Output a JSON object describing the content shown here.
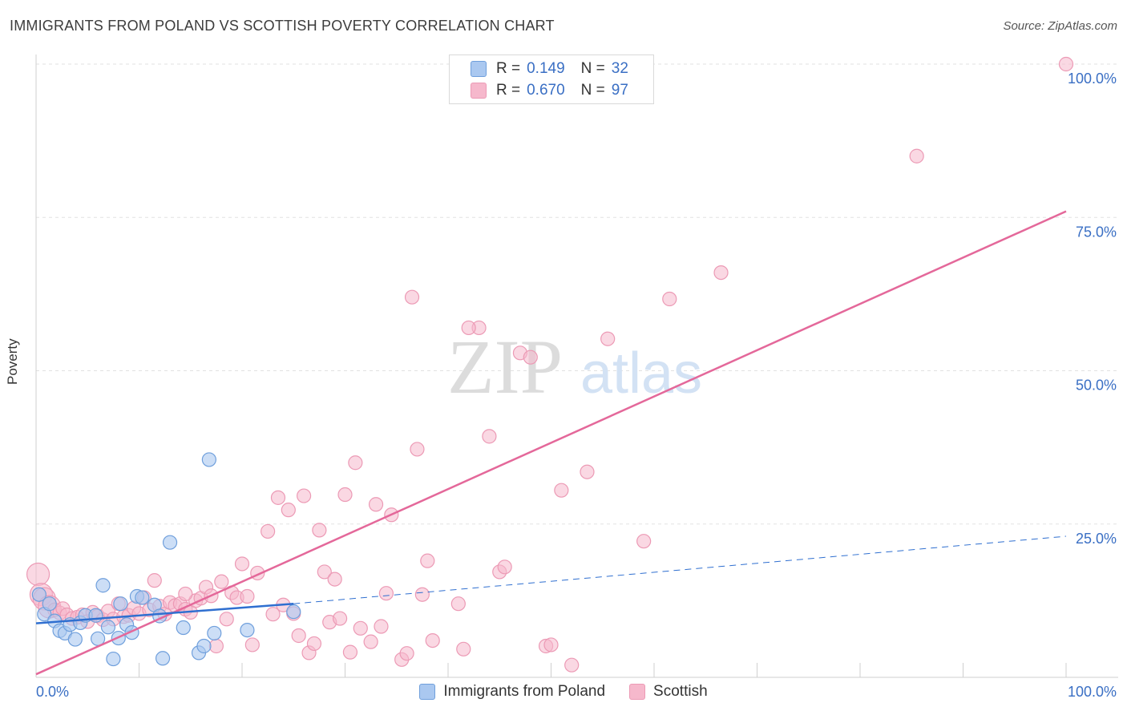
{
  "title": "IMMIGRANTS FROM POLAND VS SCOTTISH POVERTY CORRELATION CHART",
  "source": "Source: ZipAtlas.com",
  "watermark": {
    "zip": "ZIP",
    "atlas": "atlas"
  },
  "legend_stats": [
    {
      "r_label": "R =",
      "r_value": "0.149",
      "n_label": "N =",
      "n_value": "32"
    },
    {
      "r_label": "R =",
      "r_value": "0.670",
      "n_label": "N =",
      "n_value": "97"
    }
  ],
  "chart_data": {
    "type": "scatter",
    "title": "IMMIGRANTS FROM POLAND VS SCOTTISH POVERTY CORRELATION CHART",
    "xlabel": "",
    "ylabel": "Poverty",
    "xlim": [
      0,
      100
    ],
    "ylim": [
      0,
      100
    ],
    "x_tick_labels": [
      "0.0%",
      "100.0%"
    ],
    "y_tick_labels": [
      "25.0%",
      "50.0%",
      "75.0%",
      "100.0%"
    ],
    "y_ticks": [
      25,
      50,
      75,
      100
    ],
    "grid": true,
    "legend_position": "bottom",
    "colors": {
      "poland_fill": "#aac8f0",
      "poland_stroke": "#6f9fdc",
      "poland_line": "#2f6fd0",
      "scottish_fill": "#f6b8cc",
      "scottish_stroke": "#ec9ab5",
      "scottish_line": "#e4689a",
      "tick_label": "#3a6fc4"
    },
    "series": [
      {
        "name": "Immigrants from Poland",
        "R": 0.149,
        "N": 32,
        "trend": {
          "x": [
            0,
            25
          ],
          "y": [
            8.8,
            12.0
          ],
          "extended_x": [
            25,
            100
          ],
          "extended_y": [
            12.0,
            23.0
          ]
        },
        "points": [
          {
            "x": 0.3,
            "y": 13.5
          },
          {
            "x": 0.8,
            "y": 10.3
          },
          {
            "x": 1.3,
            "y": 12.0
          },
          {
            "x": 1.8,
            "y": 9.2
          },
          {
            "x": 2.3,
            "y": 7.6
          },
          {
            "x": 2.8,
            "y": 7.2
          },
          {
            "x": 3.3,
            "y": 8.6
          },
          {
            "x": 3.8,
            "y": 6.2
          },
          {
            "x": 4.3,
            "y": 8.9
          },
          {
            "x": 4.8,
            "y": 10.1
          },
          {
            "x": 5.8,
            "y": 10.1
          },
          {
            "x": 6.0,
            "y": 6.3
          },
          {
            "x": 6.5,
            "y": 15.0
          },
          {
            "x": 7.0,
            "y": 8.2
          },
          {
            "x": 7.5,
            "y": 3.0
          },
          {
            "x": 8.0,
            "y": 6.4
          },
          {
            "x": 8.2,
            "y": 12.0
          },
          {
            "x": 8.8,
            "y": 8.6
          },
          {
            "x": 9.3,
            "y": 7.3
          },
          {
            "x": 9.8,
            "y": 13.2
          },
          {
            "x": 10.3,
            "y": 13.0
          },
          {
            "x": 11.5,
            "y": 11.8
          },
          {
            "x": 12.0,
            "y": 10.0
          },
          {
            "x": 12.3,
            "y": 3.1
          },
          {
            "x": 13.0,
            "y": 22.0
          },
          {
            "x": 14.3,
            "y": 8.1
          },
          {
            "x": 15.8,
            "y": 4.0
          },
          {
            "x": 16.3,
            "y": 5.1
          },
          {
            "x": 16.8,
            "y": 35.5
          },
          {
            "x": 17.3,
            "y": 7.2
          },
          {
            "x": 20.5,
            "y": 7.7
          },
          {
            "x": 25.0,
            "y": 10.7
          }
        ]
      },
      {
        "name": "Scottish",
        "R": 0.67,
        "N": 97,
        "trend": {
          "x": [
            0,
            100
          ],
          "y": [
            0.5,
            76.0
          ]
        },
        "points": [
          {
            "x": 0.2,
            "y": 16.8
          },
          {
            "x": 0.5,
            "y": 13.5
          },
          {
            "x": 0.8,
            "y": 12.8
          },
          {
            "x": 1.3,
            "y": 11.5
          },
          {
            "x": 1.8,
            "y": 11.0
          },
          {
            "x": 2.3,
            "y": 10.5
          },
          {
            "x": 2.6,
            "y": 11.2
          },
          {
            "x": 3.0,
            "y": 10.2
          },
          {
            "x": 3.5,
            "y": 9.6
          },
          {
            "x": 4.0,
            "y": 9.8
          },
          {
            "x": 4.5,
            "y": 10.2
          },
          {
            "x": 5.0,
            "y": 9.1
          },
          {
            "x": 5.5,
            "y": 10.6
          },
          {
            "x": 6.0,
            "y": 10.0
          },
          {
            "x": 6.5,
            "y": 9.4
          },
          {
            "x": 7.0,
            "y": 10.8
          },
          {
            "x": 7.5,
            "y": 9.5
          },
          {
            "x": 8.0,
            "y": 12.0
          },
          {
            "x": 8.5,
            "y": 9.9
          },
          {
            "x": 9.0,
            "y": 10.1
          },
          {
            "x": 9.5,
            "y": 11.3
          },
          {
            "x": 10.0,
            "y": 10.4
          },
          {
            "x": 10.5,
            "y": 13.0
          },
          {
            "x": 11.0,
            "y": 11.0
          },
          {
            "x": 11.5,
            "y": 15.8
          },
          {
            "x": 12.0,
            "y": 11.6
          },
          {
            "x": 12.5,
            "y": 10.3
          },
          {
            "x": 13.0,
            "y": 12.2
          },
          {
            "x": 13.5,
            "y": 11.7
          },
          {
            "x": 14.0,
            "y": 12.0
          },
          {
            "x": 14.5,
            "y": 11.1
          },
          {
            "x": 15.0,
            "y": 10.6
          },
          {
            "x": 15.5,
            "y": 12.5
          },
          {
            "x": 16.0,
            "y": 12.9
          },
          {
            "x": 16.5,
            "y": 14.7
          },
          {
            "x": 17.0,
            "y": 13.3
          },
          {
            "x": 17.5,
            "y": 5.1
          },
          {
            "x": 18.0,
            "y": 15.6
          },
          {
            "x": 18.5,
            "y": 9.5
          },
          {
            "x": 19.0,
            "y": 13.8
          },
          {
            "x": 19.5,
            "y": 13.0
          },
          {
            "x": 20.0,
            "y": 18.5
          },
          {
            "x": 20.5,
            "y": 13.2
          },
          {
            "x": 21.0,
            "y": 5.3
          },
          {
            "x": 21.5,
            "y": 17.0
          },
          {
            "x": 22.5,
            "y": 23.8
          },
          {
            "x": 23.0,
            "y": 10.3
          },
          {
            "x": 23.5,
            "y": 29.3
          },
          {
            "x": 24.0,
            "y": 11.8
          },
          {
            "x": 24.5,
            "y": 27.3
          },
          {
            "x": 25.0,
            "y": 10.4
          },
          {
            "x": 25.5,
            "y": 6.8
          },
          {
            "x": 26.0,
            "y": 29.6
          },
          {
            "x": 26.5,
            "y": 4.0
          },
          {
            "x": 27.0,
            "y": 5.5
          },
          {
            "x": 27.5,
            "y": 24.0
          },
          {
            "x": 28.0,
            "y": 17.2
          },
          {
            "x": 28.5,
            "y": 9.0
          },
          {
            "x": 29.0,
            "y": 16.0
          },
          {
            "x": 29.5,
            "y": 9.6
          },
          {
            "x": 30.0,
            "y": 29.8
          },
          {
            "x": 30.5,
            "y": 4.1
          },
          {
            "x": 31.0,
            "y": 35.0
          },
          {
            "x": 31.5,
            "y": 8.0
          },
          {
            "x": 32.5,
            "y": 5.8
          },
          {
            "x": 33.0,
            "y": 28.2
          },
          {
            "x": 33.5,
            "y": 8.3
          },
          {
            "x": 34.0,
            "y": 13.7
          },
          {
            "x": 34.5,
            "y": 26.5
          },
          {
            "x": 35.5,
            "y": 2.9
          },
          {
            "x": 36.0,
            "y": 3.9
          },
          {
            "x": 37.0,
            "y": 37.2
          },
          {
            "x": 37.5,
            "y": 13.5
          },
          {
            "x": 38.0,
            "y": 19.0
          },
          {
            "x": 38.5,
            "y": 6.0
          },
          {
            "x": 36.5,
            "y": 62.0
          },
          {
            "x": 41.0,
            "y": 12.0
          },
          {
            "x": 41.5,
            "y": 4.6
          },
          {
            "x": 43.0,
            "y": 57.0
          },
          {
            "x": 44.0,
            "y": 39.3
          },
          {
            "x": 45.0,
            "y": 17.2
          },
          {
            "x": 45.5,
            "y": 18.0
          },
          {
            "x": 47.0,
            "y": 52.9
          },
          {
            "x": 48.0,
            "y": 52.2
          },
          {
            "x": 49.5,
            "y": 5.1
          },
          {
            "x": 51.0,
            "y": 30.5
          },
          {
            "x": 52.0,
            "y": 2.0
          },
          {
            "x": 53.5,
            "y": 33.5
          },
          {
            "x": 55.5,
            "y": 55.2
          },
          {
            "x": 59.0,
            "y": 22.2
          },
          {
            "x": 61.5,
            "y": 61.7
          },
          {
            "x": 66.5,
            "y": 66.0
          },
          {
            "x": 85.5,
            "y": 85.0
          },
          {
            "x": 100.0,
            "y": 100.0
          },
          {
            "x": 50.0,
            "y": 5.3
          },
          {
            "x": 42.0,
            "y": 57.0
          },
          {
            "x": 14.5,
            "y": 13.6
          }
        ]
      }
    ]
  }
}
